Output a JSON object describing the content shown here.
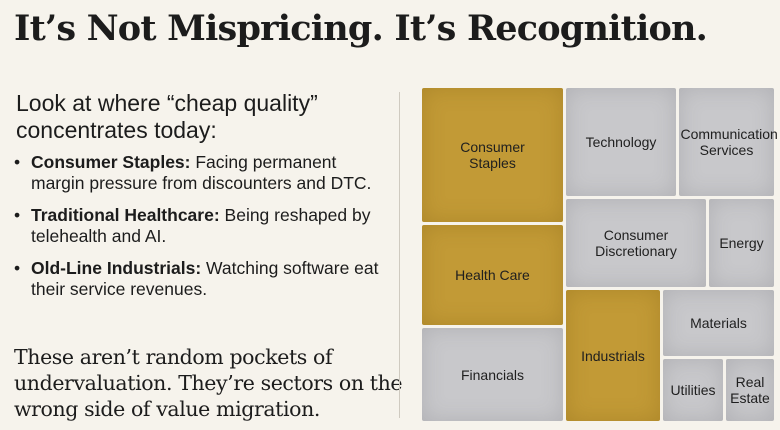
{
  "title": "It’s Not Mispricing. It’s Recognition.",
  "intro": "Look at where “cheap quality” concentrates today:",
  "bullets": [
    {
      "bold": "Consumer Staples:",
      "text": " Facing permanent margin pressure from discounters and DTC."
    },
    {
      "bold": "Traditional Healthcare:",
      "text": " Being reshaped by telehealth and AI."
    },
    {
      "bold": "Old-Line Industrials:",
      "text": " Watching software eat their service revenues."
    }
  ],
  "bullet_glyph": "•",
  "conclusion": "These aren’t random pockets of undervaluation. They’re sectors on the wrong side of value migration.",
  "colors": {
    "highlight": "#c29a36",
    "neutral": "#c8c8cb",
    "background": "#f6f3ec"
  },
  "treemap": {
    "tiles": [
      {
        "label": "Consumer Staples",
        "highlighted": true
      },
      {
        "label": "Technology",
        "highlighted": false
      },
      {
        "label": "Communication Services",
        "highlighted": false
      },
      {
        "label": "Consumer Discretionary",
        "highlighted": false
      },
      {
        "label": "Energy",
        "highlighted": false
      },
      {
        "label": "Health Care",
        "highlighted": true
      },
      {
        "label": "Materials",
        "highlighted": false
      },
      {
        "label": "Financials",
        "highlighted": false
      },
      {
        "label": "Industrials",
        "highlighted": true
      },
      {
        "label": "Utilities",
        "highlighted": false
      },
      {
        "label": "Real Estate",
        "highlighted": false
      }
    ]
  }
}
